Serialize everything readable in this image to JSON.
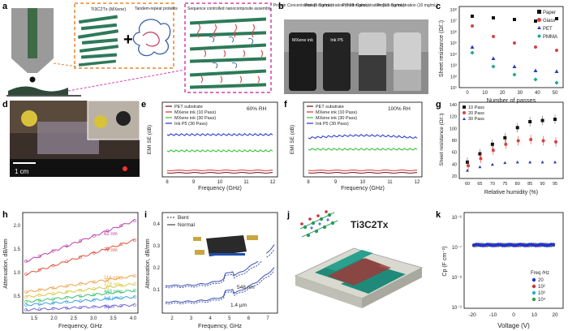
{
  "panels": {
    "a": {
      "letter": "a",
      "mxene": "Ti3C2Tx (MXene)",
      "protein": "Tandem-repeat proteins",
      "assembly": "Sequence controlled nanocomposite assembly"
    },
    "b": {
      "letter": "b",
      "conc": [
        "Protein Concentration (0 mg/mL)",
        "Protein Concentration (0.98 mg/mL)",
        "Protein Concentration (1.5 mg/mL)",
        "Protein Concentration (10 mg/mL)"
      ],
      "vial1": "MXene ink",
      "vial2": "Ink P5"
    },
    "c": {
      "letter": "c",
      "legend": [
        "Paper",
        "Glass",
        "PET",
        "PMMA"
      ],
      "ylabel": "Sheet resistance (Ω/□)",
      "xlabel": "Number of passes",
      "xticks": [
        "0",
        "10",
        "20",
        "30",
        "40",
        "50"
      ],
      "yticks": [
        "10⁸",
        "10⁷",
        "10⁶",
        "10⁵",
        "10⁴",
        "10³",
        "10²",
        "10¹"
      ]
    },
    "d": {
      "letter": "d",
      "scale": "1 cm"
    },
    "e": {
      "letter": "e",
      "rh": "60% RH",
      "legend": [
        "PET substrate",
        "MXene ink (10 Pass)",
        "MXene ink (30 Pass)",
        "Ink P5 (30 Pass)"
      ],
      "ylabel": "EMI SE (dB)",
      "xlabel": "Frequency (GHz)",
      "xticks": [
        "8",
        "9",
        "10",
        "11",
        "12"
      ]
    },
    "f": {
      "letter": "f",
      "rh": "100% RH",
      "legend": [
        "PET substrate",
        "MXene ink (10 Pass)",
        "MXene ink (30 Pass)",
        "Ink P5 (30 Pass)"
      ],
      "ylabel": "EMI SE (dB)",
      "xlabel": "Frequency (GHz)",
      "xticks": [
        "8",
        "9",
        "10",
        "11",
        "12"
      ]
    },
    "g": {
      "letter": "g",
      "legend": [
        "10 Pass",
        "20 Pass",
        "30 Pass"
      ],
      "ylabel": "Sheet resistance (Ω/□)",
      "xlabel": "Relative humidity (%)",
      "xticks": [
        "60",
        "65",
        "70",
        "75",
        "80",
        "85",
        "90",
        "95"
      ],
      "yticks": [
        "140",
        "120",
        "100",
        "80",
        "60",
        "40",
        "20"
      ]
    },
    "h": {
      "letter": "h",
      "ylabel": "Attenuation, dB/mm",
      "xlabel": "Frequency, GHz",
      "xticks": [
        "1.5",
        "2.0",
        "2.5",
        "3.0",
        "3.5",
        "4.0"
      ],
      "yticks": [
        "2.0",
        "1.5",
        "1.0",
        "0.5"
      ],
      "curves": [
        "62 nm",
        "70 nm",
        "114 nm",
        "378 nm",
        "448 nm",
        "1.4 µm",
        "8 µm"
      ]
    },
    "i": {
      "letter": "i",
      "legend": [
        "Bent",
        "Normal"
      ],
      "ylabel": "Attenuation, dB/mm",
      "xlabel": "Frequency, GHz",
      "xticks": [
        "2",
        "3",
        "4",
        "5",
        "6",
        "7"
      ],
      "yticks": [
        "0.4",
        "0.3",
        "0.2",
        "0.1"
      ],
      "labels": [
        "548 nm",
        "1.4 µm"
      ]
    },
    "j": {
      "letter": "j",
      "formula": "Ti3C2Tx"
    },
    "k": {
      "letter": "k",
      "ylabel": "Cp (F cm⁻²)",
      "xlabel": "Voltage (V)",
      "xticks": [
        "-20",
        "-10",
        "0",
        "10",
        "20"
      ],
      "yticks": [
        "10⁻⁶",
        "10⁻⁷",
        "10⁻⁸",
        "10⁻⁹"
      ],
      "legend_title": "Freq /Hz",
      "legend": [
        "20",
        "10²",
        "10³",
        "10⁴"
      ]
    }
  }
}
